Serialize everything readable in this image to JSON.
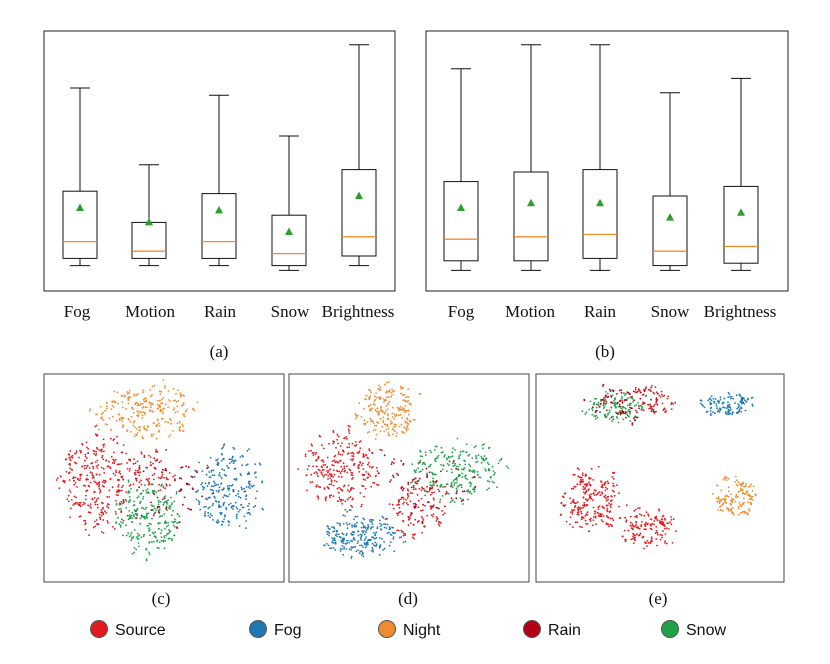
{
  "colors": {
    "frame": "#222222",
    "whisker": "#111111",
    "median": "#f28e2b",
    "mean": "#2ca02c",
    "source": "#e31a1c",
    "fog": "#1f78b4",
    "night": "#f08c2e",
    "rain": "#b30016",
    "snow": "#1fa14a"
  },
  "panel_labels": [
    "(a)",
    "(b)",
    "(c)",
    "(d)",
    "(e)"
  ],
  "chart_data": [
    {
      "type": "box",
      "panel": "(a)",
      "categories": [
        "Fog",
        "Motion",
        "Rain",
        "Snow",
        "Brightness"
      ],
      "ylim": [
        0,
        100
      ],
      "boxes": [
        {
          "whislo": 6,
          "q1": 9,
          "med": 16,
          "q3": 37,
          "whishi": 80,
          "mean": 30
        },
        {
          "whislo": 6,
          "q1": 9,
          "med": 12,
          "q3": 24,
          "whishi": 48,
          "mean": 24
        },
        {
          "whislo": 6,
          "q1": 9,
          "med": 16,
          "q3": 36,
          "whishi": 77,
          "mean": 29
        },
        {
          "whislo": 4,
          "q1": 6,
          "med": 11,
          "q3": 27,
          "whishi": 60,
          "mean": 20
        },
        {
          "whislo": 6,
          "q1": 10,
          "med": 18,
          "q3": 46,
          "whishi": 98,
          "mean": 35
        }
      ]
    },
    {
      "type": "box",
      "panel": "(b)",
      "categories": [
        "Fog",
        "Motion",
        "Rain",
        "Snow",
        "Brightness"
      ],
      "ylim": [
        0,
        100
      ],
      "boxes": [
        {
          "whislo": 4,
          "q1": 8,
          "med": 17,
          "q3": 41,
          "whishi": 88,
          "mean": 30
        },
        {
          "whislo": 4,
          "q1": 8,
          "med": 18,
          "q3": 45,
          "whishi": 98,
          "mean": 32
        },
        {
          "whislo": 4,
          "q1": 9,
          "med": 19,
          "q3": 46,
          "whishi": 98,
          "mean": 32
        },
        {
          "whislo": 4,
          "q1": 6,
          "med": 12,
          "q3": 35,
          "whishi": 78,
          "mean": 26
        },
        {
          "whislo": 4,
          "q1": 7,
          "med": 14,
          "q3": 39,
          "whishi": 84,
          "mean": 28
        }
      ]
    },
    {
      "type": "scatter",
      "panel": "(c)",
      "clusters": [
        {
          "class": "Night",
          "cx": 0.43,
          "cy": 0.18,
          "rx": 0.25,
          "ry": 0.16,
          "n": 180
        },
        {
          "class": "Source",
          "cx": 0.22,
          "cy": 0.5,
          "rx": 0.19,
          "ry": 0.3,
          "n": 220
        },
        {
          "class": "Source",
          "cx": 0.45,
          "cy": 0.47,
          "rx": 0.12,
          "ry": 0.12,
          "n": 60
        },
        {
          "class": "Snow",
          "cx": 0.43,
          "cy": 0.68,
          "rx": 0.17,
          "ry": 0.22,
          "n": 170
        },
        {
          "class": "Fog",
          "cx": 0.77,
          "cy": 0.55,
          "rx": 0.16,
          "ry": 0.24,
          "n": 170
        },
        {
          "class": "Rain",
          "cx": 0.5,
          "cy": 0.55,
          "rx": 0.24,
          "ry": 0.22,
          "n": 45
        }
      ]
    },
    {
      "type": "scatter",
      "panel": "(d)",
      "clusters": [
        {
          "class": "Night",
          "cx": 0.42,
          "cy": 0.18,
          "rx": 0.16,
          "ry": 0.16,
          "n": 150
        },
        {
          "class": "Source",
          "cx": 0.22,
          "cy": 0.45,
          "rx": 0.19,
          "ry": 0.22,
          "n": 190
        },
        {
          "class": "Source",
          "cx": 0.55,
          "cy": 0.64,
          "rx": 0.14,
          "ry": 0.18,
          "n": 90
        },
        {
          "class": "Snow",
          "cx": 0.7,
          "cy": 0.47,
          "rx": 0.22,
          "ry": 0.17,
          "n": 170
        },
        {
          "class": "Fog",
          "cx": 0.3,
          "cy": 0.78,
          "rx": 0.2,
          "ry": 0.13,
          "n": 170
        },
        {
          "class": "Rain",
          "cx": 0.55,
          "cy": 0.55,
          "rx": 0.25,
          "ry": 0.22,
          "n": 50
        }
      ]
    },
    {
      "type": "scatter",
      "panel": "(e)",
      "clusters": [
        {
          "class": "Snow",
          "cx": 0.32,
          "cy": 0.16,
          "rx": 0.18,
          "ry": 0.09,
          "n": 90
        },
        {
          "class": "Rain",
          "cx": 0.38,
          "cy": 0.14,
          "rx": 0.22,
          "ry": 0.1,
          "n": 70
        },
        {
          "class": "Source",
          "cx": 0.45,
          "cy": 0.12,
          "rx": 0.15,
          "ry": 0.08,
          "n": 40
        },
        {
          "class": "Fog",
          "cx": 0.78,
          "cy": 0.15,
          "rx": 0.14,
          "ry": 0.07,
          "n": 90
        },
        {
          "class": "Source",
          "cx": 0.22,
          "cy": 0.6,
          "rx": 0.15,
          "ry": 0.18,
          "n": 170
        },
        {
          "class": "Source",
          "cx": 0.45,
          "cy": 0.74,
          "rx": 0.14,
          "ry": 0.11,
          "n": 110
        },
        {
          "class": "Night",
          "cx": 0.8,
          "cy": 0.59,
          "rx": 0.11,
          "ry": 0.12,
          "n": 100
        }
      ]
    }
  ],
  "legend": [
    {
      "label": "Source",
      "color_key": "source"
    },
    {
      "label": "Fog",
      "color_key": "fog"
    },
    {
      "label": "Night",
      "color_key": "night"
    },
    {
      "label": "Rain",
      "color_key": "rain"
    },
    {
      "label": "Snow",
      "color_key": "snow"
    }
  ]
}
